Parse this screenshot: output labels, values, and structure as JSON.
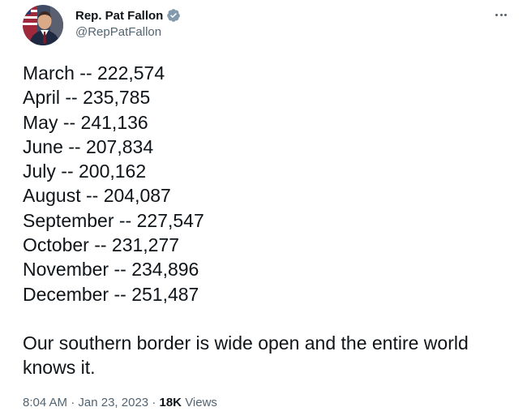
{
  "author": {
    "display_name": "Rep. Pat Fallon",
    "handle": "@RepPatFallon",
    "verified_color": "#829aab"
  },
  "tweet": {
    "lines": [
      "March -- 222,574",
      "April -- 235,785",
      "May -- 241,136",
      "June -- 207,834",
      "July -- 200,162",
      "August -- 204,087",
      "September -- 227,547",
      "October -- 231,277",
      "November -- 234,896",
      "December -- 251,487"
    ],
    "closing": "Our southern border is wide open and the entire world knows it."
  },
  "meta": {
    "time": "8:04 AM",
    "separator": "·",
    "date": "Jan 23, 2023",
    "views_count": "18K",
    "views_label": "Views"
  },
  "icons": {
    "more": "more-horizontal-icon",
    "verified": "verified-badge-icon"
  }
}
